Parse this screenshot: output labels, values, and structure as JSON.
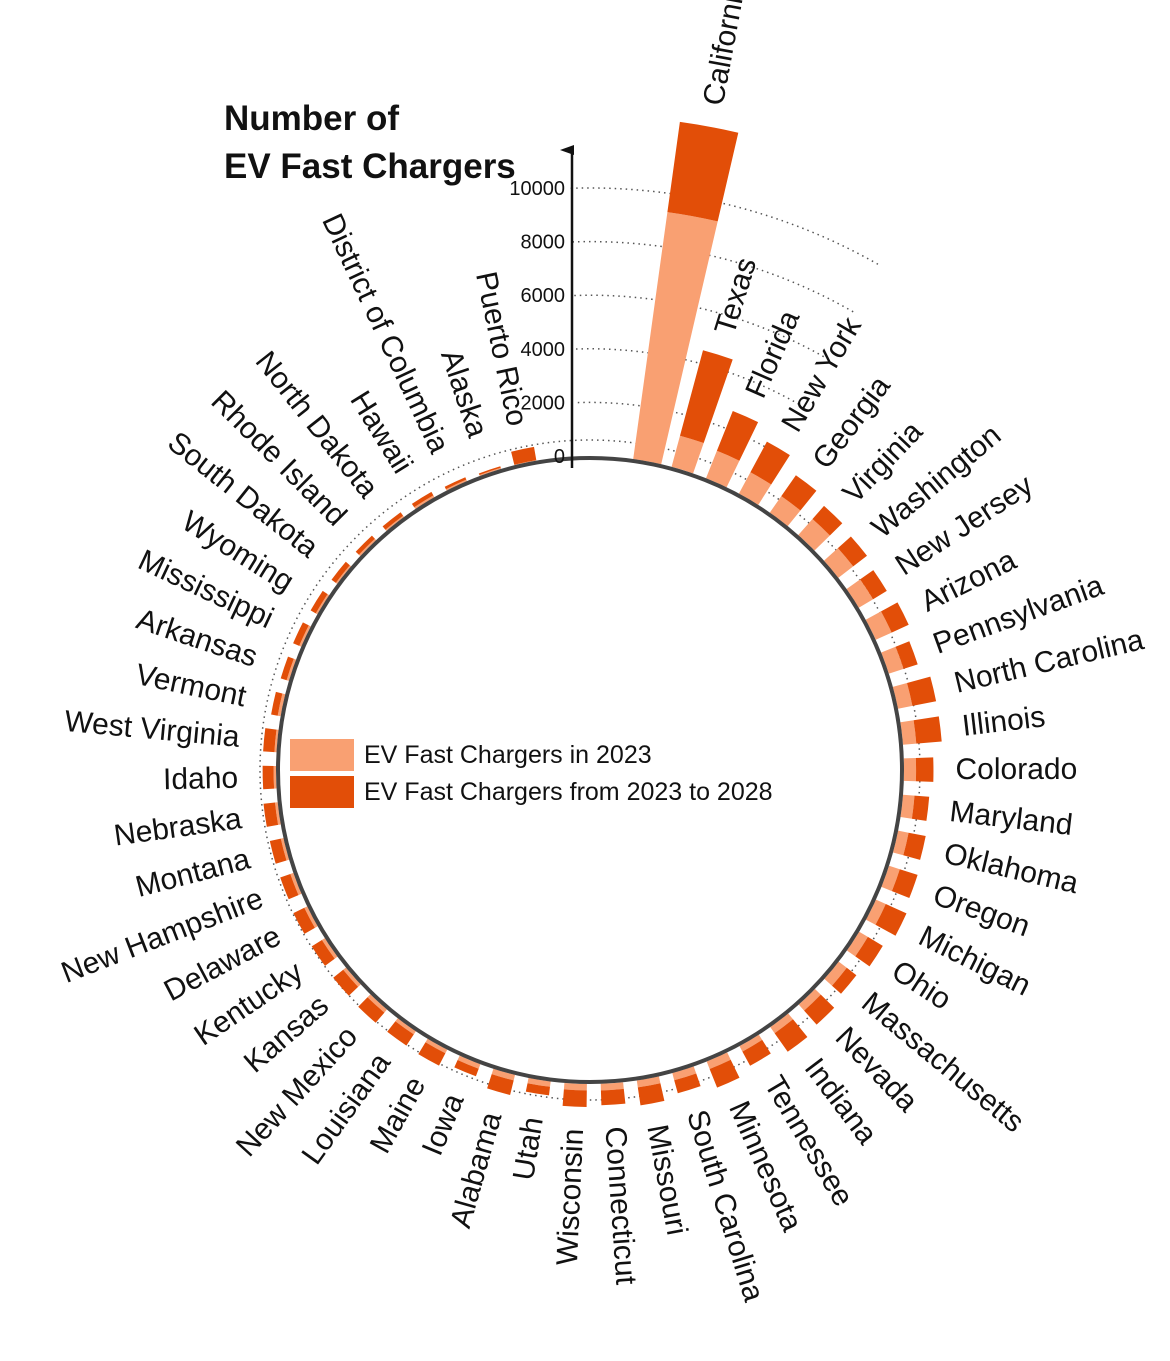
{
  "chart_data": {
    "type": "bar",
    "layout": "radial stacked bar",
    "title_lines": [
      "Number of",
      "EV Fast Chargers"
    ],
    "y_ticks": [
      0,
      2000,
      4000,
      6000,
      8000,
      10000
    ],
    "ylim": [
      0,
      12000
    ],
    "categories": [
      "California",
      "Texas",
      "Florida",
      "New York",
      "Georgia",
      "Virginia",
      "Washington",
      "New Jersey",
      "Arizona",
      "Pennsylvania",
      "North Carolina",
      "Illinois",
      "Colorado",
      "Maryland",
      "Oklahoma",
      "Oregon",
      "Michigan",
      "Ohio",
      "Massachusetts",
      "Nevada",
      "Indiana",
      "Tennessee",
      "Minnesota",
      "South Carolina",
      "Missouri",
      "Connecticut",
      "Wisconsin",
      "Utah",
      "Alabama",
      "Iowa",
      "Maine",
      "Louisiana",
      "New Mexico",
      "Kansas",
      "Kentucky",
      "Delaware",
      "New Hampshire",
      "Montana",
      "Nebraska",
      "Idaho",
      "West Virginia",
      "Vermont",
      "Arkansas",
      "Mississippi",
      "Wyoming",
      "South Dakota",
      "Rhode Island",
      "North Dakota",
      "Hawaii",
      "District of Columbia",
      "Alaska",
      "Puerto Rico"
    ],
    "series": [
      {
        "name": "EV Fast Chargers in 2023",
        "values": [
          9300,
          1200,
          1100,
          900,
          750,
          800,
          700,
          620,
          650,
          580,
          550,
          500,
          450,
          430,
          400,
          420,
          400,
          380,
          380,
          300,
          280,
          230,
          300,
          280,
          260,
          250,
          240,
          200,
          210,
          180,
          150,
          140,
          150,
          130,
          130,
          120,
          120,
          100,
          100,
          90,
          80,
          110,
          90,
          80,
          70,
          60,
          70,
          60,
          80,
          60,
          40,
          20
        ]
      },
      {
        "name": "EV Fast Chargers from 2023 to 2028",
        "values": [
          3400,
          3300,
          1600,
          1300,
          950,
          650,
          650,
          600,
          700,
          550,
          900,
          950,
          650,
          550,
          650,
          700,
          850,
          650,
          450,
          700,
          850,
          600,
          750,
          500,
          680,
          550,
          620,
          320,
          560,
          300,
          520,
          500,
          500,
          480,
          450,
          450,
          400,
          420,
          430,
          410,
          420,
          250,
          230,
          250,
          220,
          200,
          160,
          160,
          150,
          100,
          60,
          500
        ]
      }
    ],
    "legend": [
      "EV Fast Chargers in 2023",
      "EV Fast Chargers from 2023 to 2028"
    ],
    "legend_position": "center",
    "colors": {
      "y2023": "#F9A072",
      "growth": "#E24E08",
      "ring": "#444444"
    }
  }
}
